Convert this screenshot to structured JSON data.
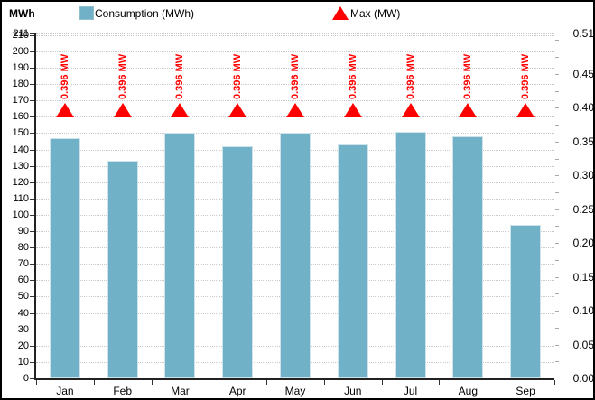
{
  "header": {
    "axis_unit_label": "MWh",
    "legend": [
      {
        "label": "Consumption (MWh)",
        "marker": "square-icon",
        "color": "#71b1c7"
      },
      {
        "label": "Max (MW)",
        "marker": "triangle-icon",
        "color": "#ff0000"
      }
    ]
  },
  "chart_data": {
    "type": "bar",
    "title": "",
    "categories": [
      "Jan",
      "Feb",
      "Mar",
      "Apr",
      "May",
      "Jun",
      "Jul",
      "Aug",
      "Sep"
    ],
    "series": [
      {
        "name": "Consumption (MWh)",
        "type": "bar",
        "axis": "left",
        "color": "#71b1c7",
        "values": [
          147,
          133,
          150,
          142,
          150,
          143,
          151,
          148,
          94
        ]
      },
      {
        "name": "Max (MW)",
        "type": "triangle-marker",
        "axis": "right",
        "color": "#ff0000",
        "values": [
          0.396,
          0.396,
          0.396,
          0.396,
          0.396,
          0.396,
          0.396,
          0.396,
          0.396
        ],
        "point_labels": [
          "0.396 MW",
          "0.396 MW",
          "0.396 MW",
          "0.396 MW",
          "0.396 MW",
          "0.396 MW",
          "0.396 MW",
          "0.396 MW",
          "0.396 MW"
        ]
      }
    ],
    "left_axis": {
      "title": "MWh",
      "min": 0,
      "max": 211,
      "label_step": 10,
      "top_label": 211
    },
    "right_axis": {
      "title": "",
      "min": 0,
      "max": 0.51,
      "label_step": 0.05,
      "top_label": 0.51,
      "minor_tick_step": 0.025
    },
    "grid": {
      "horizontal": true,
      "style": "dotted",
      "color": "#c9c9c9"
    },
    "legend_position": "top"
  }
}
